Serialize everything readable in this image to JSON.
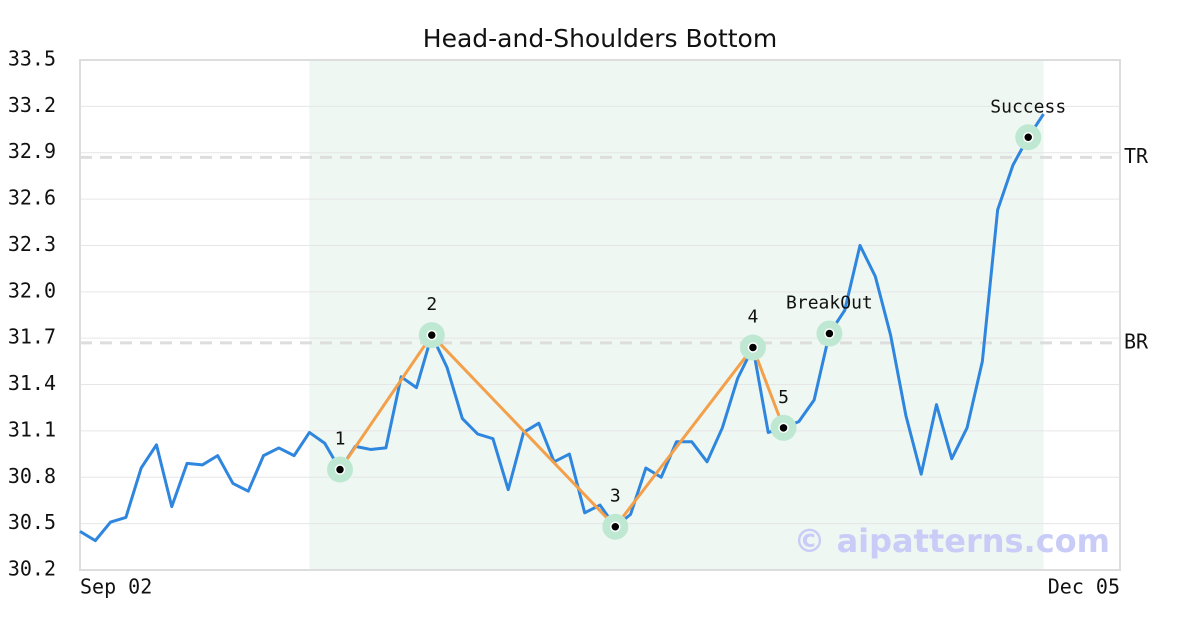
{
  "chart_data": {
    "type": "line",
    "title": "Head-and-Shoulders Bottom",
    "categories": [
      "Sep 02",
      null,
      null,
      null,
      null,
      null,
      null,
      null,
      null,
      null,
      null,
      null,
      null,
      null,
      null,
      null,
      null,
      null,
      null,
      null,
      null,
      null,
      null,
      null,
      null,
      null,
      null,
      null,
      null,
      null,
      null,
      null,
      null,
      null,
      null,
      null,
      null,
      null,
      null,
      null,
      null,
      null,
      null,
      null,
      null,
      null,
      null,
      null,
      null,
      null,
      null,
      null,
      null,
      null,
      null,
      null,
      null,
      null,
      null,
      null,
      null,
      null,
      null,
      null,
      null,
      null,
      null,
      null,
      "Dec 05"
    ],
    "values": [
      30.45,
      30.39,
      30.51,
      30.54,
      30.86,
      31.01,
      30.61,
      30.89,
      30.88,
      30.94,
      30.76,
      30.71,
      30.94,
      30.99,
      30.94,
      31.09,
      31.02,
      30.85,
      31.0,
      30.98,
      30.99,
      31.45,
      31.38,
      31.72,
      31.51,
      31.18,
      31.08,
      31.05,
      30.72,
      31.09,
      31.15,
      30.9,
      30.95,
      30.57,
      30.62,
      30.48,
      30.56,
      30.86,
      30.8,
      31.03,
      31.03,
      30.9,
      31.12,
      31.44,
      31.64,
      31.09,
      31.12,
      31.16,
      31.3,
      31.73,
      31.88,
      32.3,
      32.1,
      31.72,
      31.2,
      30.82,
      31.27,
      30.92,
      31.12,
      31.55,
      32.53,
      32.82,
      33.0,
      33.15,
      null,
      null,
      null,
      null,
      null
    ],
    "color": "#2e86de",
    "ylim": [
      30.2,
      33.5
    ],
    "yticks": [
      30.2,
      30.5,
      30.8,
      31.1,
      31.4,
      31.7,
      {
        "value": 32,
        "label": "32.0"
      },
      32.3,
      32.6,
      32.9,
      33.2,
      33.5
    ],
    "grid": true,
    "shaded_span": [
      15,
      63
    ],
    "reference_lines": [
      {
        "label": "TR",
        "value": 32.87
      },
      {
        "label": "BR",
        "value": 31.67
      }
    ],
    "pattern_points": [
      {
        "label": "1",
        "index": 17,
        "connected": true
      },
      {
        "label": "2",
        "index": 23,
        "connected": true
      },
      {
        "label": "3",
        "index": 35,
        "connected": true
      },
      {
        "label": "4",
        "index": 44,
        "connected": true
      },
      {
        "label": "5",
        "index": 46,
        "connected": true
      },
      {
        "label": "BreakOut",
        "index": 49,
        "connected": false
      },
      {
        "label": "Success",
        "index": 62,
        "connected": false
      }
    ],
    "pattern_color": "#f4a04a",
    "watermark": "© aipatterns.com"
  }
}
